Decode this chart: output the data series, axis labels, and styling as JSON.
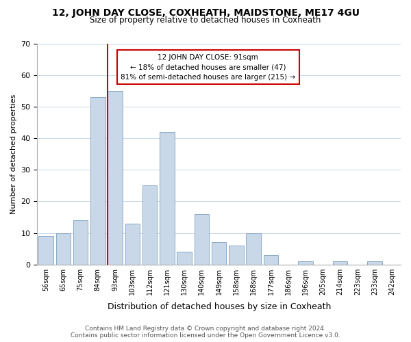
{
  "title": "12, JOHN DAY CLOSE, COXHEATH, MAIDSTONE, ME17 4GU",
  "subtitle": "Size of property relative to detached houses in Coxheath",
  "xlabel": "Distribution of detached houses by size in Coxheath",
  "ylabel": "Number of detached properties",
  "bin_labels": [
    "56sqm",
    "65sqm",
    "75sqm",
    "84sqm",
    "93sqm",
    "103sqm",
    "112sqm",
    "121sqm",
    "130sqm",
    "140sqm",
    "149sqm",
    "158sqm",
    "168sqm",
    "177sqm",
    "186sqm",
    "196sqm",
    "205sqm",
    "214sqm",
    "223sqm",
    "233sqm",
    "242sqm"
  ],
  "bar_heights": [
    9,
    10,
    14,
    53,
    55,
    13,
    25,
    42,
    4,
    16,
    7,
    6,
    10,
    3,
    0,
    1,
    0,
    1,
    0,
    1,
    0
  ],
  "bar_color": "#c8d8e8",
  "bar_edge_color": "#8aaac8",
  "marker_line_color": "#cc0000",
  "marker_label": "12 JOHN DAY CLOSE: 91sqm",
  "annotation_line1": "← 18% of detached houses are smaller (47)",
  "annotation_line2": "81% of semi-detached houses are larger (215) →",
  "annotation_box_color": "#ffffff",
  "annotation_box_edge": "#cc0000",
  "ylim": [
    0,
    70
  ],
  "yticks": [
    0,
    10,
    20,
    30,
    40,
    50,
    60,
    70
  ],
  "footer_line1": "Contains HM Land Registry data © Crown copyright and database right 2024.",
  "footer_line2": "Contains public sector information licensed under the Open Government Licence v3.0.",
  "background_color": "#ffffff",
  "grid_color": "#c8d8e8"
}
